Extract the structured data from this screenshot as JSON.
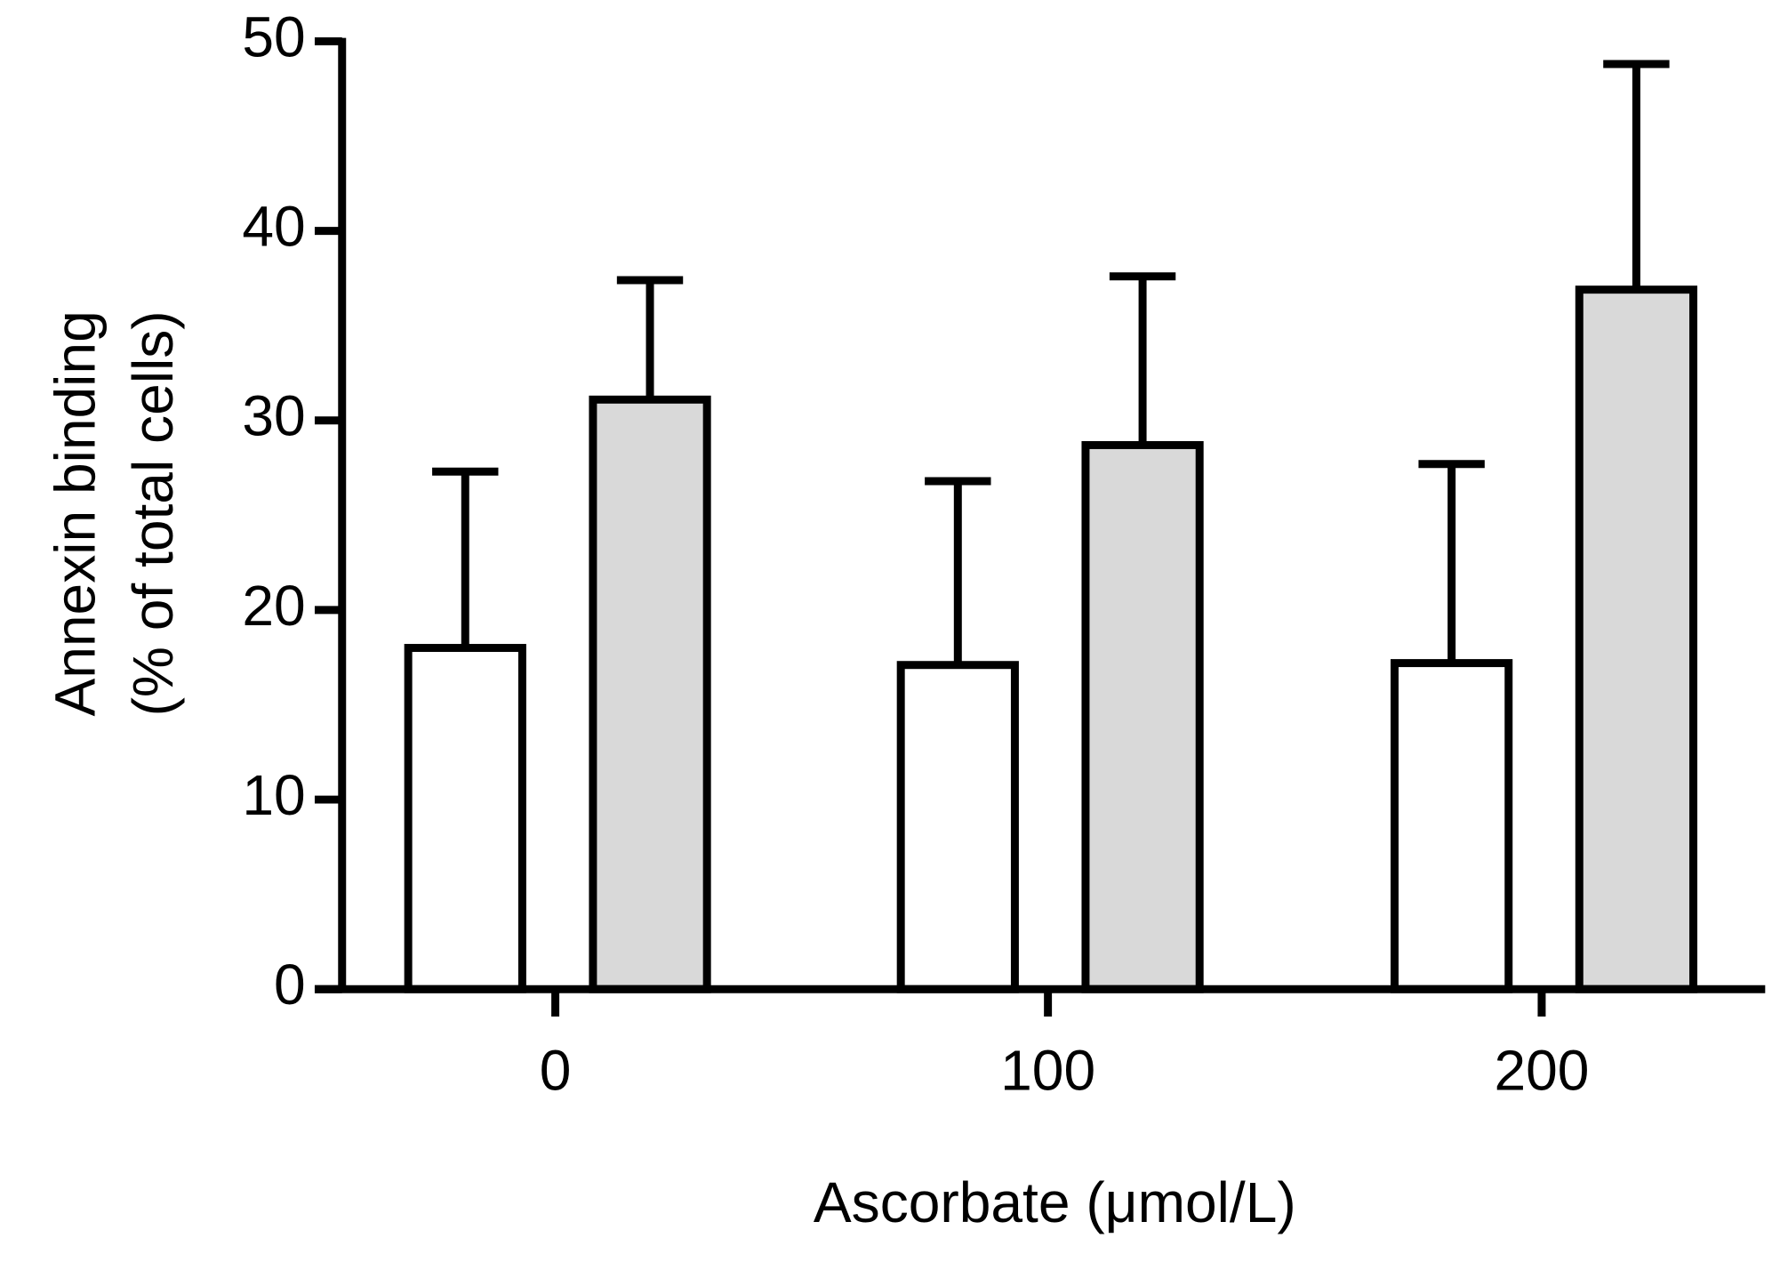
{
  "chart_data": {
    "type": "bar",
    "xlabel": "Ascorbate (μmol/L)",
    "ylabel": [
      "Annexin  binding",
      "(% of total cells)"
    ],
    "categories": [
      "0",
      "100",
      "200"
    ],
    "series": [
      {
        "color": "#ffffff",
        "values": [
          18,
          17.1,
          17.2
        ],
        "errors": [
          9.3,
          9.7,
          10.5
        ]
      },
      {
        "color": "#d9d9d9",
        "values": [
          31.1,
          28.7,
          36.9
        ],
        "errors": [
          6.3,
          8.9,
          11.9
        ]
      }
    ],
    "ylim": [
      0,
      50
    ],
    "yticks": [
      0,
      10,
      20,
      30,
      40,
      50
    ],
    "grid": false
  }
}
